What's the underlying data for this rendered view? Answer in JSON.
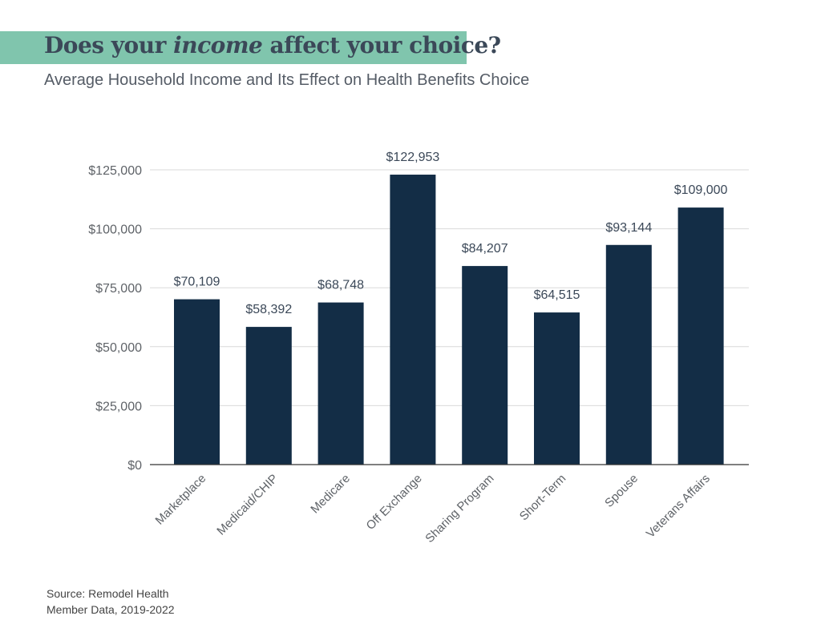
{
  "header": {
    "title_pre": "Does your ",
    "title_em": "income",
    "title_post": " affect your choice?",
    "subtitle": "Average Household Income and Its Effect on Health Benefits Choice"
  },
  "source": {
    "line1": "Source: Remodel Health",
    "line2": "Member Data, 2019-2022"
  },
  "colors": {
    "band": "#80c5ad",
    "bar": "#132d46"
  },
  "chart_data": {
    "type": "bar",
    "title": "Average Household Income and Its Effect on Health Benefits Choice",
    "xlabel": "",
    "ylabel": "",
    "categories": [
      "Marketplace",
      "Medicaid/CHIP",
      "Medicare",
      "Off Exchange",
      "Sharing Program",
      "Short-Term",
      "Spouse",
      "Veterans Affairs"
    ],
    "values": [
      70109,
      58392,
      68748,
      122953,
      84207,
      64515,
      93144,
      109000
    ],
    "data_labels": [
      "$70,109",
      "$58,392",
      "$68,748",
      "$122,953",
      "$84,207",
      "$64,515",
      "$93,144",
      "$109,000"
    ],
    "ylim": [
      0,
      125000
    ],
    "yticks": [
      0,
      25000,
      50000,
      75000,
      100000,
      125000
    ],
    "ytick_labels": [
      "$0",
      "$25,000",
      "$50,000",
      "$75,000",
      "$100,000",
      "$125,000"
    ],
    "grid": true,
    "legend": "none"
  }
}
